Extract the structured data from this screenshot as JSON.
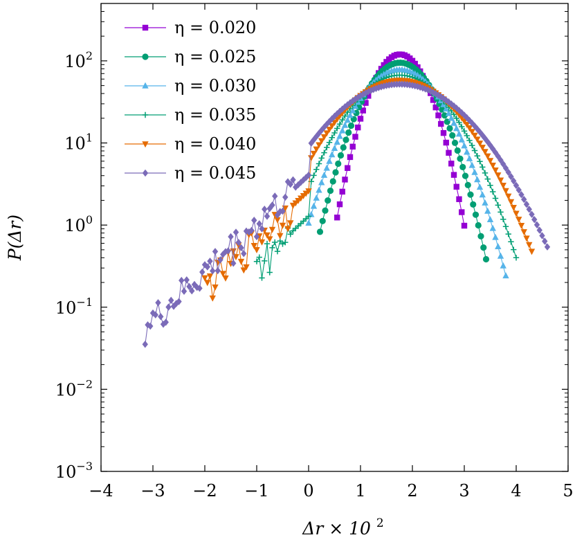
{
  "chart_data": {
    "type": "line",
    "xlabel": "Δr × 10^2",
    "ylabel": "P(Δr)",
    "xlim": [
      -4,
      5
    ],
    "ylim": [
      0.001,
      500
    ],
    "y_scale": "log",
    "x_ticks": [
      -4,
      -3,
      -2,
      -1,
      0,
      1,
      2,
      3,
      4,
      5
    ],
    "x_tick_labels": [
      "−4",
      "−3",
      "−2",
      "−1",
      "0",
      "1",
      "2",
      "3",
      "4",
      "5"
    ],
    "y_ticks": [
      0.001,
      0.01,
      0.1,
      1,
      10,
      100
    ],
    "y_tick_labels": [
      {
        "base": "10",
        "exp": "−3"
      },
      {
        "base": "10",
        "exp": "−2"
      },
      {
        "base": "10",
        "exp": "−1"
      },
      {
        "base": "10",
        "exp": "0"
      },
      {
        "base": "10",
        "exp": "1"
      },
      {
        "base": "10",
        "exp": "2"
      }
    ],
    "grid": false,
    "legend_position": "top-left",
    "series": [
      {
        "name": "η = 0.020",
        "color": "#9400d3",
        "marker": "square",
        "center": 1.76,
        "peak": 120,
        "sigma": 0.4,
        "left_cutoff": 0.55,
        "right_cutoff": 3.0
      },
      {
        "name": "η = 0.025",
        "color": "#009e73",
        "marker": "circle",
        "center": 1.76,
        "peak": 95,
        "sigma": 0.5,
        "left_cutoff": 0.22,
        "right_cutoff": 3.45
      },
      {
        "name": "η = 0.030",
        "color": "#56b4e9",
        "marker": "triangle-up",
        "center": 1.76,
        "peak": 78,
        "sigma": 0.6,
        "left_cutoff": 0.0,
        "right_cutoff": 3.8
      },
      {
        "name": "η = 0.035",
        "color": "#009e73",
        "marker": "plus",
        "center": 1.76,
        "peak": 67,
        "sigma": 0.7,
        "left_cutoff": -1.0,
        "right_cutoff": 4.0
      },
      {
        "name": "η = 0.040",
        "color": "#e56b00",
        "marker": "triangle-down",
        "center": 1.76,
        "peak": 58,
        "sigma": 0.82,
        "left_cutoff": -2.0,
        "right_cutoff": 4.3
      },
      {
        "name": "η = 0.045",
        "color": "#7b6bb8",
        "marker": "diamond",
        "center": 1.76,
        "peak": 52,
        "sigma": 0.94,
        "left_cutoff": -3.15,
        "right_cutoff": 4.6
      }
    ]
  }
}
